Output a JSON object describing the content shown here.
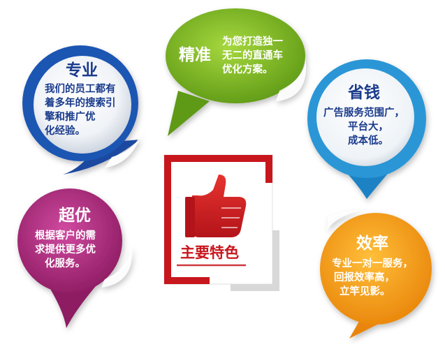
{
  "badges": {
    "zhuanye": {
      "title": "专业",
      "lines": [
        "我们的员工都有",
        "着多年的搜索引",
        "擎和推广优",
        "化经验。"
      ],
      "color": "#1f56b3"
    },
    "jingzhun": {
      "title": "精准",
      "lines": [
        "为您打造独一",
        "无二的直通车",
        "优化方案。"
      ],
      "color": "#7fb82a"
    },
    "shengqian": {
      "title": "省钱",
      "lines": [
        "广告服务范围广，",
        "平台大，",
        "成本低。"
      ],
      "color": "#2a96d6"
    },
    "chaoyou": {
      "title": "超优",
      "lines": [
        "根据客户的需",
        "求提供更多优",
        "化服务。"
      ],
      "color": "#b0267c"
    },
    "xiaolv": {
      "title": "效率",
      "lines": [
        "专业一对一服务，",
        "回报效率高，",
        "立竿见影。"
      ],
      "color": "#f29a12"
    }
  },
  "center": {
    "label": "主要特色",
    "color": "#c8161d"
  }
}
